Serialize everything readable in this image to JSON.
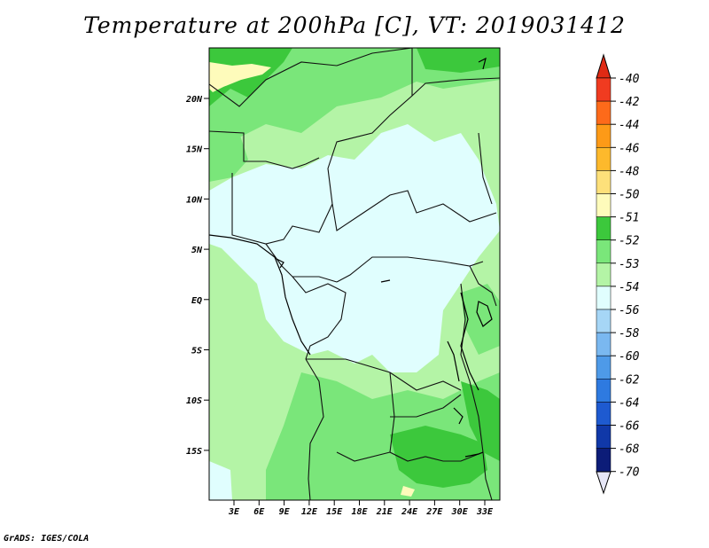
{
  "title": "Temperature at 200hPa [C], VT: 2019031412",
  "credit": "GrADS: IGES/COLA",
  "map": {
    "lat_ticks": [
      "20N",
      "15N",
      "10N",
      "5N",
      "EQ",
      "5S",
      "10S",
      "15S"
    ],
    "lon_ticks": [
      "3E",
      "6E",
      "9E",
      "12E",
      "15E",
      "18E",
      "21E",
      "24E",
      "27E",
      "30E",
      "33E"
    ]
  },
  "colorbar": {
    "levels": [
      {
        "label": "-40",
        "color": "#d7301f"
      },
      {
        "label": "-42",
        "color": "#f03b20"
      },
      {
        "label": "-44",
        "color": "#fd6a1a"
      },
      {
        "label": "-46",
        "color": "#fd9a17"
      },
      {
        "label": "-48",
        "color": "#fdb92c"
      },
      {
        "label": "-50",
        "color": "#fde07a"
      },
      {
        "label": "-51",
        "color": "#fefbbb"
      },
      {
        "label": "-52",
        "color": "#3cc83c"
      },
      {
        "label": "-53",
        "color": "#7ae67a"
      },
      {
        "label": "-54",
        "color": "#b4f4a6"
      },
      {
        "label": "-56",
        "color": "#e0fefe"
      },
      {
        "label": "-58",
        "color": "#a6d6f6"
      },
      {
        "label": "-60",
        "color": "#7ab8f0"
      },
      {
        "label": "-62",
        "color": "#4e9ae8"
      },
      {
        "label": "-64",
        "color": "#2e7ae0"
      },
      {
        "label": "-66",
        "color": "#1e5ad0"
      },
      {
        "label": "-68",
        "color": "#1038a8"
      },
      {
        "label": "-70",
        "color": "#0c1c78"
      }
    ],
    "top_color": "#e02a14",
    "bottom_color": "#e6e6f6"
  }
}
